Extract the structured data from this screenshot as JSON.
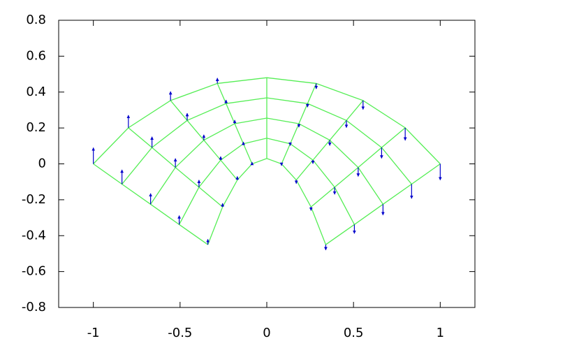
{
  "chart_data": {
    "type": "quiver",
    "mesh": {
      "color": "#55ee55",
      "x": [
        [
          -0.34,
          -0.255,
          -0.17,
          -0.085,
          0,
          0.085,
          0.17,
          0.255,
          0.34
        ],
        [
          -0.505,
          -0.391,
          -0.266,
          -0.135,
          0,
          0.135,
          0.266,
          0.391,
          0.505
        ],
        [
          -0.67,
          -0.527,
          -0.363,
          -0.185,
          0,
          0.185,
          0.363,
          0.527,
          0.67
        ],
        [
          -0.835,
          -0.662,
          -0.459,
          -0.235,
          0,
          0.235,
          0.459,
          0.662,
          0.835
        ],
        [
          -1,
          -0.798,
          -0.555,
          -0.285,
          0,
          0.285,
          0.555,
          0.798,
          1
        ]
      ],
      "y": [
        [
          -0.45,
          -0.24,
          -0.09,
          0,
          0.03,
          0,
          -0.09,
          -0.24,
          -0.45
        ],
        [
          -0.338,
          -0.13,
          0.021,
          0.112,
          0.143,
          0.112,
          0.021,
          -0.13,
          -0.338
        ],
        [
          -0.225,
          -0.02,
          0.132,
          0.224,
          0.255,
          0.224,
          0.132,
          -0.02,
          -0.225
        ],
        [
          -0.113,
          0.091,
          0.242,
          0.336,
          0.368,
          0.336,
          0.242,
          0.091,
          -0.113
        ],
        [
          0,
          0.201,
          0.353,
          0.448,
          0.48,
          0.448,
          0.353,
          0.201,
          0
        ]
      ]
    },
    "arrows": {
      "color": "#0000cc",
      "v": [
        [
          0.03,
          0.02,
          0.02,
          0.01,
          0,
          -0.01,
          -0.02,
          -0.02,
          -0.03
        ],
        [
          0.05,
          0.04,
          0.02,
          0.01,
          0,
          -0.01,
          -0.02,
          -0.04,
          -0.05
        ],
        [
          0.06,
          0.05,
          0.03,
          0.02,
          0,
          -0.02,
          -0.03,
          -0.05,
          -0.06
        ],
        [
          0.08,
          0.06,
          0.04,
          0.02,
          0,
          -0.02,
          -0.04,
          -0.06,
          -0.08
        ],
        [
          0.09,
          0.07,
          0.05,
          0.03,
          0,
          -0.03,
          -0.05,
          -0.07,
          -0.09
        ]
      ]
    },
    "xlim": [
      -1.2,
      1.2
    ],
    "ylim": [
      -0.8,
      0.8
    ],
    "xticks": [
      -1,
      -0.5,
      0,
      0.5,
      1
    ],
    "yticks": [
      -0.8,
      -0.6,
      -0.4,
      -0.2,
      0,
      0.2,
      0.4,
      0.6,
      0.8
    ]
  }
}
